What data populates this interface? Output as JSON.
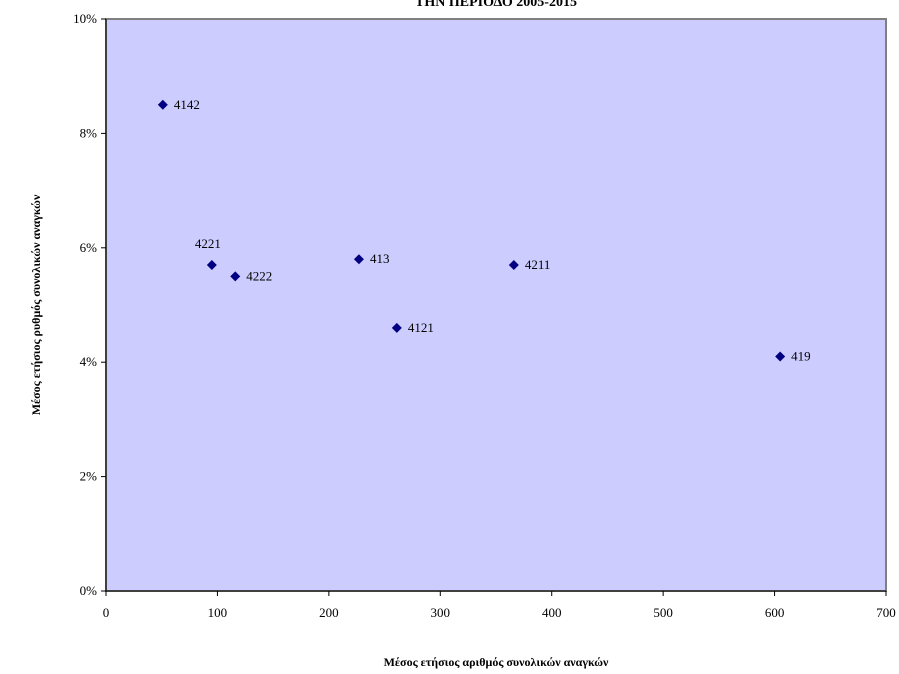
{
  "chart_data": {
    "type": "scatter",
    "title": "ΤΗΝ ΠΕΡΙΟΔΟ 2005-2015",
    "xlabel": "Μέσος ετήσιος αριθμός συνολικών αναγκών",
    "ylabel": "Μέσος ετήσιος ρυθμός συνολικών αναγκών",
    "xlim": [
      0,
      700
    ],
    "ylim": [
      0,
      0.1
    ],
    "x_ticks": [
      "0",
      "100",
      "200",
      "300",
      "400",
      "500",
      "600",
      "700"
    ],
    "y_ticks": [
      "0%",
      "2%",
      "4%",
      "6%",
      "8%",
      "10%"
    ],
    "grid": false,
    "colors": {
      "plot_bg": "#ccccff",
      "marker": "#000080"
    },
    "points": [
      {
        "label": "4142",
        "x": 51,
        "y": 0.085
      },
      {
        "label": "4221",
        "x": 95,
        "y": 0.057
      },
      {
        "label": "4222",
        "x": 116,
        "y": 0.055
      },
      {
        "label": "413",
        "x": 227,
        "y": 0.058
      },
      {
        "label": "4121",
        "x": 261,
        "y": 0.046
      },
      {
        "label": "4211",
        "x": 366,
        "y": 0.057
      },
      {
        "label": "419",
        "x": 605,
        "y": 0.041
      }
    ]
  }
}
